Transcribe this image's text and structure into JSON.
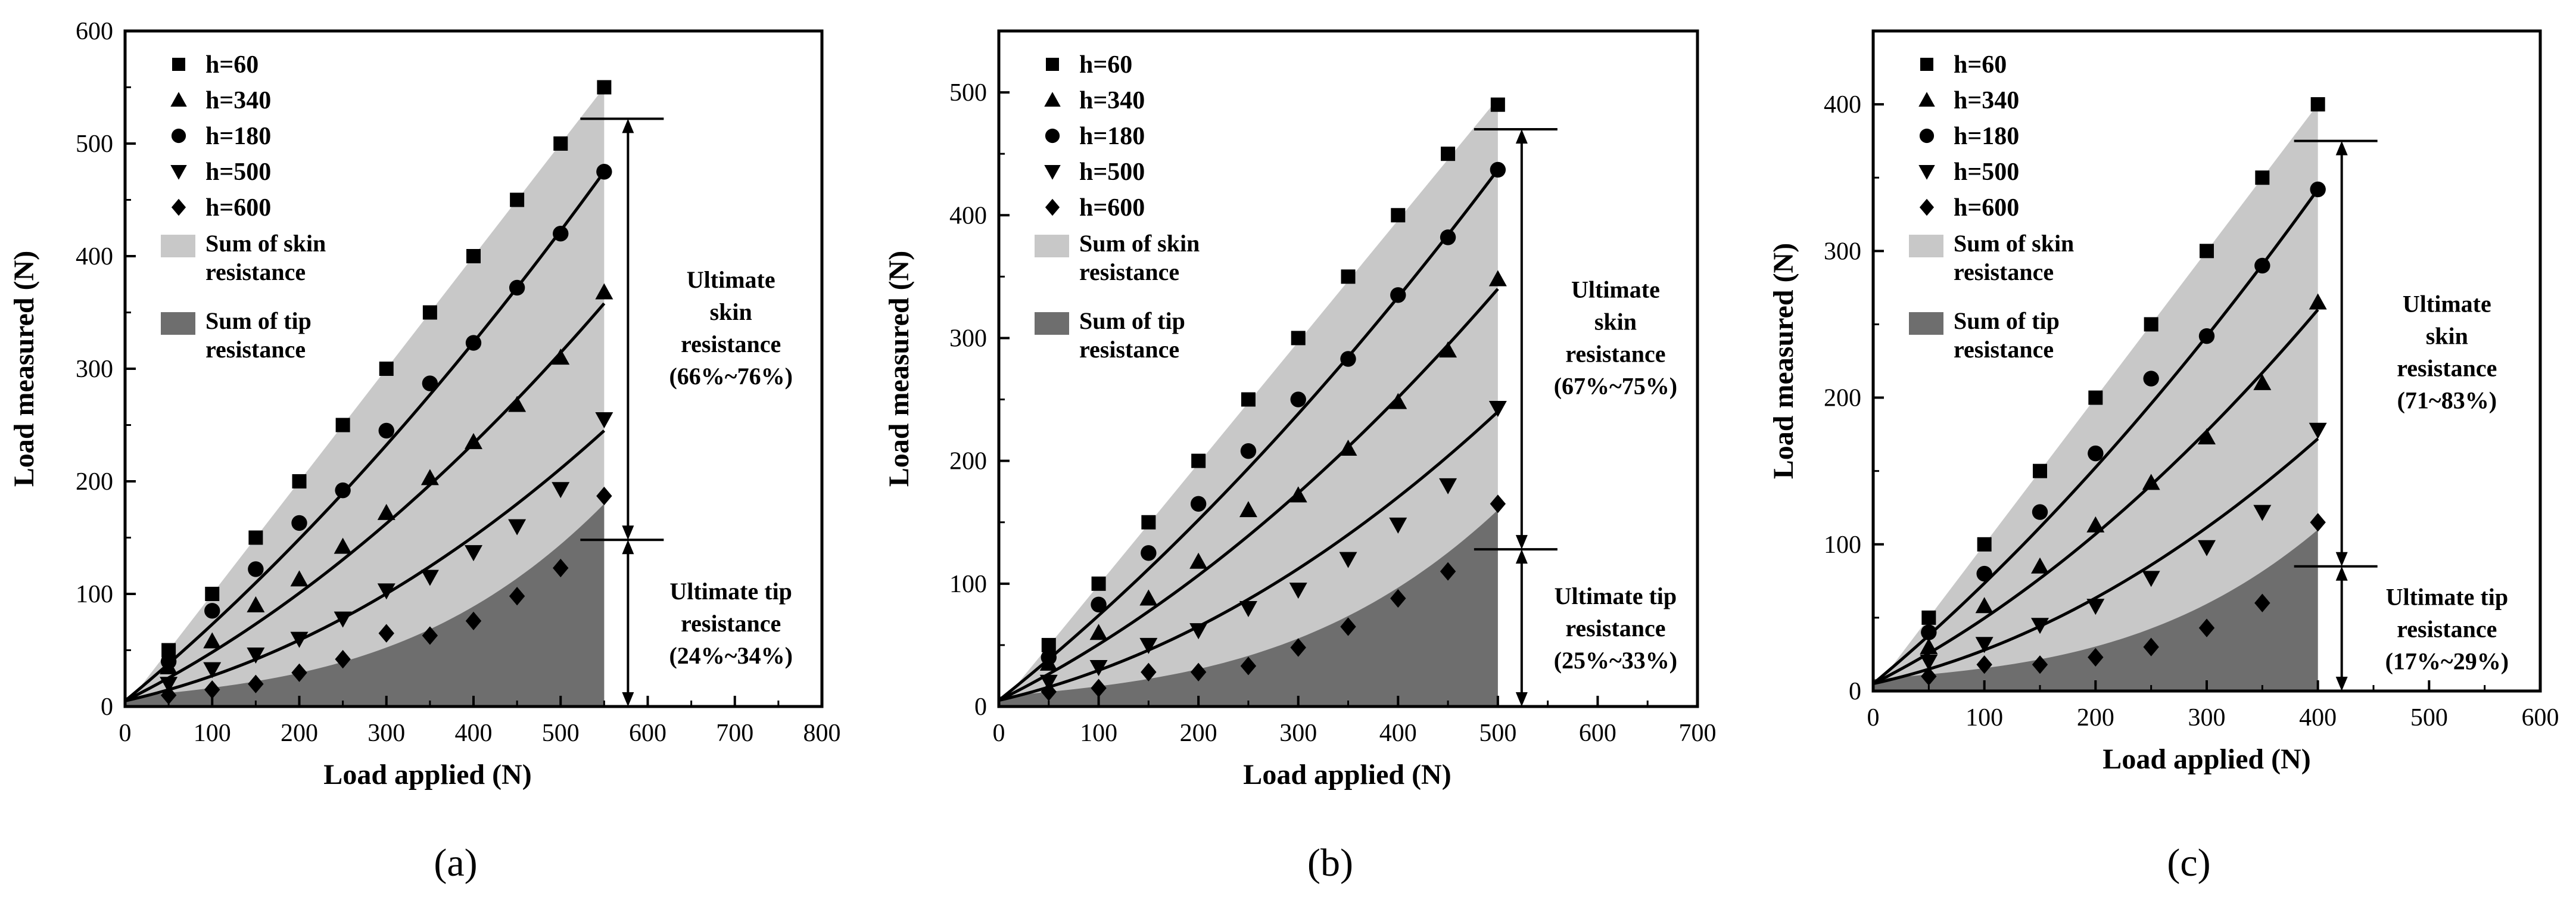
{
  "chart_data": [
    {
      "type": "scatter",
      "panel_label": "(a)",
      "xlabel": "Load applied (N)",
      "ylabel": "Load measured (N)",
      "xlim": [
        0,
        800
      ],
      "ylim": [
        0,
        600
      ],
      "xticks": [
        "0",
        "100",
        "200",
        "300",
        "400",
        "500",
        "600",
        "700",
        "800"
      ],
      "yticks": [
        "0",
        "100",
        "200",
        "300",
        "400",
        "500",
        "600"
      ],
      "xtick_values": [
        0,
        100,
        200,
        300,
        400,
        500,
        600,
        700,
        800
      ],
      "ytick_values": [
        0,
        100,
        200,
        300,
        400,
        500,
        600
      ],
      "x_end": 550,
      "x": [
        50,
        100,
        150,
        200,
        250,
        300,
        350,
        400,
        450,
        500,
        550
      ],
      "series": [
        {
          "name": "h=60",
          "marker": "square",
          "values": [
            50,
            100,
            150,
            200,
            250,
            300,
            350,
            400,
            450,
            500,
            550
          ]
        },
        {
          "name": "h=340",
          "marker": "triangle-up",
          "values": [
            35,
            58,
            90,
            113,
            142,
            172,
            203,
            235,
            268,
            310,
            368
          ]
        },
        {
          "name": "h=180",
          "marker": "circle",
          "values": [
            40,
            85,
            122,
            163,
            192,
            245,
            287,
            323,
            372,
            420,
            475
          ]
        },
        {
          "name": "h=500",
          "marker": "triangle-down",
          "values": [
            20,
            33,
            46,
            60,
            78,
            103,
            115,
            137,
            160,
            193,
            255
          ]
        },
        {
          "name": "h=600",
          "marker": "diamond",
          "values": [
            10,
            15,
            20,
            30,
            42,
            65,
            63,
            76,
            98,
            123,
            187
          ]
        }
      ],
      "fit_curves": [
        {
          "name": "h=180",
          "values": [
            0,
            475
          ]
        },
        {
          "name": "h=340",
          "values": [
            0,
            358
          ]
        },
        {
          "name": "h=500",
          "values": [
            0,
            245
          ]
        }
      ],
      "skin_top_end": 550,
      "tip_top_end": 180,
      "legend": [
        "h=60",
        "h=340",
        "h=180",
        "h=500",
        "h=600",
        "Sum of skin\nresistance",
        "Sum of tip\nresistance"
      ],
      "annotations": {
        "skin": [
          "Ultimate",
          "skin",
          "resistance",
          "(66%~76%)"
        ],
        "tip": [
          "Ultimate tip",
          "resistance",
          "(24%~34%)"
        ],
        "upper_line_y": 522,
        "split_line_y": 148
      }
    },
    {
      "type": "scatter",
      "panel_label": "(b)",
      "xlabel": "Load applied (N)",
      "ylabel": "Load measured (N)",
      "xlim": [
        0,
        700
      ],
      "ylim": [
        0,
        550
      ],
      "xticks": [
        "0",
        "100",
        "200",
        "300",
        "400",
        "500",
        "600",
        "700"
      ],
      "yticks": [
        "0",
        "100",
        "200",
        "300",
        "400",
        "500"
      ],
      "xtick_values": [
        0,
        100,
        200,
        300,
        400,
        500,
        600,
        700
      ],
      "ytick_values": [
        0,
        100,
        200,
        300,
        400,
        500
      ],
      "x_end": 500,
      "x": [
        50,
        100,
        150,
        200,
        250,
        300,
        350,
        400,
        450,
        500
      ],
      "series": [
        {
          "name": "h=60",
          "marker": "square",
          "values": [
            50,
            100,
            150,
            200,
            250,
            300,
            350,
            400,
            450,
            490
          ]
        },
        {
          "name": "h=340",
          "marker": "triangle-up",
          "values": [
            35,
            60,
            88,
            118,
            160,
            172,
            210,
            248,
            290,
            348
          ]
        },
        {
          "name": "h=180",
          "marker": "circle",
          "values": [
            40,
            83,
            125,
            165,
            208,
            250,
            283,
            335,
            382,
            437
          ]
        },
        {
          "name": "h=500",
          "marker": "triangle-down",
          "values": [
            20,
            32,
            50,
            62,
            80,
            95,
            120,
            148,
            180,
            243
          ]
        },
        {
          "name": "h=600",
          "marker": "diamond",
          "values": [
            12,
            15,
            28,
            28,
            33,
            48,
            65,
            88,
            110,
            165
          ]
        }
      ],
      "fit_curves": [
        {
          "name": "h=180",
          "values": [
            0,
            437
          ]
        },
        {
          "name": "h=340",
          "values": [
            0,
            340
          ]
        },
        {
          "name": "h=500",
          "values": [
            0,
            240
          ]
        }
      ],
      "skin_top_end": 495,
      "tip_top_end": 160,
      "legend": [
        "h=60",
        "h=340",
        "h=180",
        "h=500",
        "h=600",
        "Sum of skin\nresistance",
        "Sum of tip\nresistance"
      ],
      "annotations": {
        "skin": [
          "Ultimate",
          "skin",
          "resistance",
          "(67%~75%)"
        ],
        "tip": [
          "Ultimate tip",
          "resistance",
          "(25%~33%)"
        ],
        "upper_line_y": 470,
        "split_line_y": 128
      }
    },
    {
      "type": "scatter",
      "panel_label": "(c)",
      "xlabel": "Load applied (N)",
      "ylabel": "Load measured (N)",
      "xlim": [
        0,
        600
      ],
      "ylim": [
        0,
        450
      ],
      "xticks": [
        "0",
        "100",
        "200",
        "300",
        "400",
        "500",
        "600"
      ],
      "yticks": [
        "0",
        "100",
        "200",
        "300",
        "400"
      ],
      "xtick_values": [
        0,
        100,
        200,
        300,
        400,
        500,
        600
      ],
      "ytick_values": [
        0,
        100,
        200,
        300,
        400
      ],
      "x_end": 400,
      "x": [
        50,
        100,
        150,
        200,
        250,
        300,
        350,
        400
      ],
      "series": [
        {
          "name": "h=60",
          "marker": "square",
          "values": [
            50,
            100,
            150,
            200,
            250,
            300,
            350,
            400
          ]
        },
        {
          "name": "h=340",
          "marker": "triangle-up",
          "values": [
            30,
            58,
            85,
            113,
            142,
            173,
            210,
            265
          ]
        },
        {
          "name": "h=180",
          "marker": "circle",
          "values": [
            40,
            80,
            122,
            162,
            213,
            242,
            290,
            342
          ]
        },
        {
          "name": "h=500",
          "marker": "triangle-down",
          "values": [
            20,
            32,
            45,
            58,
            77,
            98,
            122,
            178
          ]
        },
        {
          "name": "h=600",
          "marker": "diamond",
          "values": [
            10,
            18,
            18,
            23,
            30,
            43,
            60,
            115
          ]
        }
      ],
      "fit_curves": [
        {
          "name": "h=180",
          "values": [
            0,
            342
          ]
        },
        {
          "name": "h=340",
          "values": [
            0,
            260
          ]
        },
        {
          "name": "h=500",
          "values": [
            0,
            172
          ]
        }
      ],
      "skin_top_end": 400,
      "tip_top_end": 110,
      "legend": [
        "h=60",
        "h=340",
        "h=180",
        "h=500",
        "h=600",
        "Sum of skin\nresistance",
        "Sum of tip\nresistance"
      ],
      "annotations": {
        "skin": [
          "Ultimate",
          "skin",
          "resistance",
          "(71~83%)"
        ],
        "tip": [
          "Ultimate tip",
          "resistance",
          "(17%~29%)"
        ],
        "upper_line_y": 375,
        "split_line_y": 85
      }
    }
  ],
  "colors": {
    "skin_fill": "#c8c8c8",
    "tip_fill": "#6e6e6e",
    "marker": "#000000",
    "axis": "#000000"
  }
}
